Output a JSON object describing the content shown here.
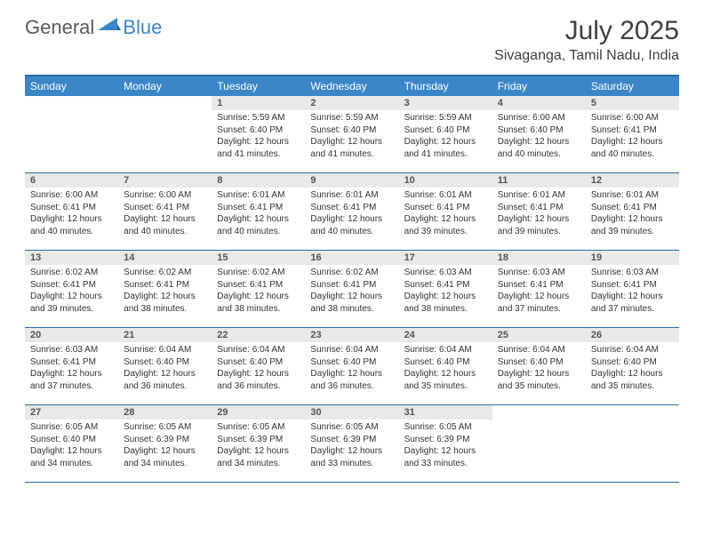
{
  "logo": {
    "general": "General",
    "blue": "Blue"
  },
  "title": "July 2025",
  "location": "Sivaganga, Tamil Nadu, India",
  "colors": {
    "header_blue": "#3b86c6",
    "rule_blue": "#2b6aa8",
    "daynum_bg": "#e9e9e9",
    "text_gray": "#404040",
    "logo_gray": "#5a5a5a"
  },
  "day_names": [
    "Sunday",
    "Monday",
    "Tuesday",
    "Wednesday",
    "Thursday",
    "Friday",
    "Saturday"
  ],
  "weeks": [
    [
      {
        "empty": true
      },
      {
        "empty": true
      },
      {
        "n": "1",
        "sr": "5:59 AM",
        "ss": "6:40 PM",
        "dl": "12 hours and 41 minutes."
      },
      {
        "n": "2",
        "sr": "5:59 AM",
        "ss": "6:40 PM",
        "dl": "12 hours and 41 minutes."
      },
      {
        "n": "3",
        "sr": "5:59 AM",
        "ss": "6:40 PM",
        "dl": "12 hours and 41 minutes."
      },
      {
        "n": "4",
        "sr": "6:00 AM",
        "ss": "6:40 PM",
        "dl": "12 hours and 40 minutes."
      },
      {
        "n": "5",
        "sr": "6:00 AM",
        "ss": "6:41 PM",
        "dl": "12 hours and 40 minutes."
      }
    ],
    [
      {
        "n": "6",
        "sr": "6:00 AM",
        "ss": "6:41 PM",
        "dl": "12 hours and 40 minutes."
      },
      {
        "n": "7",
        "sr": "6:00 AM",
        "ss": "6:41 PM",
        "dl": "12 hours and 40 minutes."
      },
      {
        "n": "8",
        "sr": "6:01 AM",
        "ss": "6:41 PM",
        "dl": "12 hours and 40 minutes."
      },
      {
        "n": "9",
        "sr": "6:01 AM",
        "ss": "6:41 PM",
        "dl": "12 hours and 40 minutes."
      },
      {
        "n": "10",
        "sr": "6:01 AM",
        "ss": "6:41 PM",
        "dl": "12 hours and 39 minutes."
      },
      {
        "n": "11",
        "sr": "6:01 AM",
        "ss": "6:41 PM",
        "dl": "12 hours and 39 minutes."
      },
      {
        "n": "12",
        "sr": "6:01 AM",
        "ss": "6:41 PM",
        "dl": "12 hours and 39 minutes."
      }
    ],
    [
      {
        "n": "13",
        "sr": "6:02 AM",
        "ss": "6:41 PM",
        "dl": "12 hours and 39 minutes."
      },
      {
        "n": "14",
        "sr": "6:02 AM",
        "ss": "6:41 PM",
        "dl": "12 hours and 38 minutes."
      },
      {
        "n": "15",
        "sr": "6:02 AM",
        "ss": "6:41 PM",
        "dl": "12 hours and 38 minutes."
      },
      {
        "n": "16",
        "sr": "6:02 AM",
        "ss": "6:41 PM",
        "dl": "12 hours and 38 minutes."
      },
      {
        "n": "17",
        "sr": "6:03 AM",
        "ss": "6:41 PM",
        "dl": "12 hours and 38 minutes."
      },
      {
        "n": "18",
        "sr": "6:03 AM",
        "ss": "6:41 PM",
        "dl": "12 hours and 37 minutes."
      },
      {
        "n": "19",
        "sr": "6:03 AM",
        "ss": "6:41 PM",
        "dl": "12 hours and 37 minutes."
      }
    ],
    [
      {
        "n": "20",
        "sr": "6:03 AM",
        "ss": "6:41 PM",
        "dl": "12 hours and 37 minutes."
      },
      {
        "n": "21",
        "sr": "6:04 AM",
        "ss": "6:40 PM",
        "dl": "12 hours and 36 minutes."
      },
      {
        "n": "22",
        "sr": "6:04 AM",
        "ss": "6:40 PM",
        "dl": "12 hours and 36 minutes."
      },
      {
        "n": "23",
        "sr": "6:04 AM",
        "ss": "6:40 PM",
        "dl": "12 hours and 36 minutes."
      },
      {
        "n": "24",
        "sr": "6:04 AM",
        "ss": "6:40 PM",
        "dl": "12 hours and 35 minutes."
      },
      {
        "n": "25",
        "sr": "6:04 AM",
        "ss": "6:40 PM",
        "dl": "12 hours and 35 minutes."
      },
      {
        "n": "26",
        "sr": "6:04 AM",
        "ss": "6:40 PM",
        "dl": "12 hours and 35 minutes."
      }
    ],
    [
      {
        "n": "27",
        "sr": "6:05 AM",
        "ss": "6:40 PM",
        "dl": "12 hours and 34 minutes."
      },
      {
        "n": "28",
        "sr": "6:05 AM",
        "ss": "6:39 PM",
        "dl": "12 hours and 34 minutes."
      },
      {
        "n": "29",
        "sr": "6:05 AM",
        "ss": "6:39 PM",
        "dl": "12 hours and 34 minutes."
      },
      {
        "n": "30",
        "sr": "6:05 AM",
        "ss": "6:39 PM",
        "dl": "12 hours and 33 minutes."
      },
      {
        "n": "31",
        "sr": "6:05 AM",
        "ss": "6:39 PM",
        "dl": "12 hours and 33 minutes."
      },
      {
        "empty": true
      },
      {
        "empty": true
      }
    ]
  ],
  "labels": {
    "sunrise": "Sunrise: ",
    "sunset": "Sunset: ",
    "daylight": "Daylight: "
  }
}
